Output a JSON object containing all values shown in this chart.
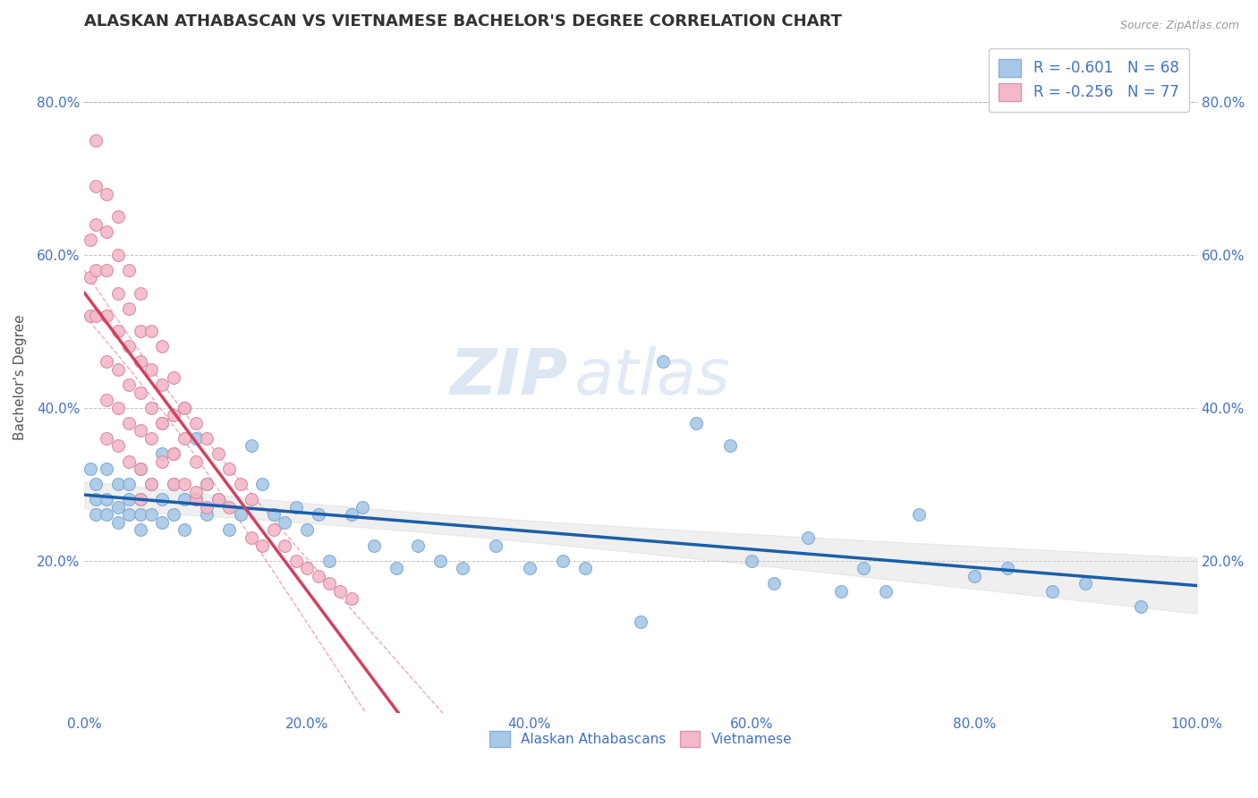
{
  "title": "ALASKAN ATHABASCAN VS VIETNAMESE BACHELOR'S DEGREE CORRELATION CHART",
  "source": "Source: ZipAtlas.com",
  "ylabel": "Bachelor's Degree",
  "legend_label1": "Alaskan Athabascans",
  "legend_label2": "Vietnamese",
  "r1": -0.601,
  "n1": 68,
  "r2": -0.256,
  "n2": 77,
  "color1": "#a8c8e8",
  "color2": "#f4b8c8",
  "trendline1_color": "#1a5fa8",
  "trendline2_color": "#d44060",
  "background_color": "#ffffff",
  "grid_color": "#aaaaaa",
  "tick_label_color": "#4472c4",
  "title_color": "#333333",
  "source_color": "#999999",
  "xlim": [
    0,
    1
  ],
  "ylim": [
    0,
    0.88
  ],
  "alaskan_x": [
    0.005,
    0.01,
    0.01,
    0.01,
    0.02,
    0.02,
    0.02,
    0.03,
    0.03,
    0.03,
    0.04,
    0.04,
    0.04,
    0.05,
    0.05,
    0.05,
    0.05,
    0.06,
    0.06,
    0.07,
    0.07,
    0.07,
    0.08,
    0.08,
    0.09,
    0.09,
    0.1,
    0.1,
    0.11,
    0.11,
    0.12,
    0.13,
    0.14,
    0.15,
    0.16,
    0.17,
    0.18,
    0.19,
    0.2,
    0.21,
    0.22,
    0.24,
    0.25,
    0.26,
    0.28,
    0.3,
    0.32,
    0.34,
    0.37,
    0.4,
    0.43,
    0.45,
    0.5,
    0.52,
    0.55,
    0.58,
    0.6,
    0.62,
    0.65,
    0.68,
    0.7,
    0.72,
    0.75,
    0.8,
    0.83,
    0.87,
    0.9,
    0.95
  ],
  "alaskan_y": [
    0.32,
    0.3,
    0.28,
    0.26,
    0.32,
    0.28,
    0.26,
    0.3,
    0.27,
    0.25,
    0.3,
    0.26,
    0.28,
    0.32,
    0.28,
    0.26,
    0.24,
    0.3,
    0.26,
    0.34,
    0.28,
    0.25,
    0.3,
    0.26,
    0.28,
    0.24,
    0.36,
    0.28,
    0.3,
    0.26,
    0.28,
    0.24,
    0.26,
    0.35,
    0.3,
    0.26,
    0.25,
    0.27,
    0.24,
    0.26,
    0.2,
    0.26,
    0.27,
    0.22,
    0.19,
    0.22,
    0.2,
    0.19,
    0.22,
    0.19,
    0.2,
    0.19,
    0.12,
    0.46,
    0.38,
    0.35,
    0.2,
    0.17,
    0.23,
    0.16,
    0.19,
    0.16,
    0.26,
    0.18,
    0.19,
    0.16,
    0.17,
    0.14
  ],
  "vietnamese_x": [
    0.005,
    0.005,
    0.005,
    0.01,
    0.01,
    0.01,
    0.01,
    0.01,
    0.02,
    0.02,
    0.02,
    0.02,
    0.02,
    0.02,
    0.02,
    0.03,
    0.03,
    0.03,
    0.03,
    0.03,
    0.03,
    0.03,
    0.04,
    0.04,
    0.04,
    0.04,
    0.04,
    0.04,
    0.05,
    0.05,
    0.05,
    0.05,
    0.05,
    0.05,
    0.05,
    0.06,
    0.06,
    0.06,
    0.06,
    0.06,
    0.07,
    0.07,
    0.07,
    0.07,
    0.08,
    0.08,
    0.08,
    0.08,
    0.09,
    0.09,
    0.09,
    0.1,
    0.1,
    0.1,
    0.11,
    0.11,
    0.12,
    0.12,
    0.13,
    0.13,
    0.14,
    0.15,
    0.15,
    0.16,
    0.17,
    0.18,
    0.19,
    0.2,
    0.21,
    0.22,
    0.23,
    0.24,
    0.1,
    0.11,
    0.08,
    0.09,
    0.07
  ],
  "vietnamese_y": [
    0.62,
    0.57,
    0.52,
    0.75,
    0.69,
    0.64,
    0.58,
    0.52,
    0.68,
    0.63,
    0.58,
    0.52,
    0.46,
    0.41,
    0.36,
    0.65,
    0.6,
    0.55,
    0.5,
    0.45,
    0.4,
    0.35,
    0.58,
    0.53,
    0.48,
    0.43,
    0.38,
    0.33,
    0.55,
    0.5,
    0.46,
    0.42,
    0.37,
    0.32,
    0.28,
    0.5,
    0.45,
    0.4,
    0.36,
    0.3,
    0.48,
    0.43,
    0.38,
    0.33,
    0.44,
    0.39,
    0.34,
    0.3,
    0.4,
    0.36,
    0.3,
    0.38,
    0.33,
    0.28,
    0.36,
    0.3,
    0.34,
    0.28,
    0.32,
    0.27,
    0.3,
    0.28,
    0.23,
    0.22,
    0.24,
    0.22,
    0.2,
    0.19,
    0.18,
    0.17,
    0.16,
    0.15,
    0.29,
    0.27,
    0.34,
    0.4,
    0.38
  ]
}
